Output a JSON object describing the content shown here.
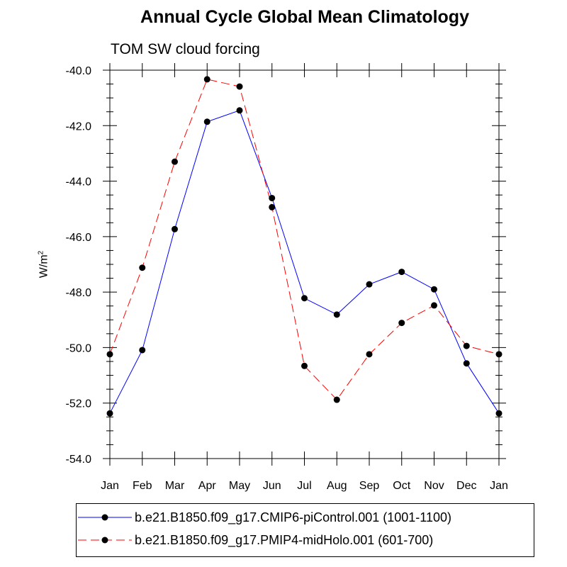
{
  "chart_data": {
    "type": "line",
    "title": "Annual Cycle Global Mean Climatology",
    "subtitle": "TOM SW cloud forcing",
    "ylabel": "W/m",
    "ylabel_superscript": "2",
    "xlabel": "",
    "categories": [
      "Jan",
      "Feb",
      "Mar",
      "Apr",
      "May",
      "Jun",
      "Jul",
      "Aug",
      "Sep",
      "Oct",
      "Nov",
      "Dec",
      "Jan"
    ],
    "ylim": [
      -54.0,
      -40.0
    ],
    "yticks": [
      "-40.0",
      "-42.0",
      "-44.0",
      "-46.0",
      "-48.0",
      "-50.0",
      "-52.0",
      "-54.0"
    ],
    "ytick_values": [
      -40,
      -42,
      -44,
      -46,
      -48,
      -50,
      -52,
      -54
    ],
    "grid": false,
    "legend_position": "bottom",
    "series": [
      {
        "name": "b.e21.B1850.f09_g17.CMIP6-piControl.001 (1001-1100)",
        "color": "#0000ff",
        "dash": "solid",
        "values": [
          -52.37,
          -50.09,
          -45.73,
          -41.86,
          -41.45,
          -44.61,
          -48.22,
          -48.81,
          -47.72,
          -47.27,
          -47.9,
          -50.57,
          -52.37
        ]
      },
      {
        "name": "b.e21.B1850.f09_g17.PMIP4-midHolo.001 (601-700)",
        "color": "#ff0000",
        "dash": "dashed",
        "values": [
          -50.24,
          -47.12,
          -43.3,
          -40.33,
          -40.59,
          -44.94,
          -50.66,
          -51.88,
          -50.24,
          -49.11,
          -48.48,
          -49.94,
          -50.24
        ]
      }
    ]
  }
}
